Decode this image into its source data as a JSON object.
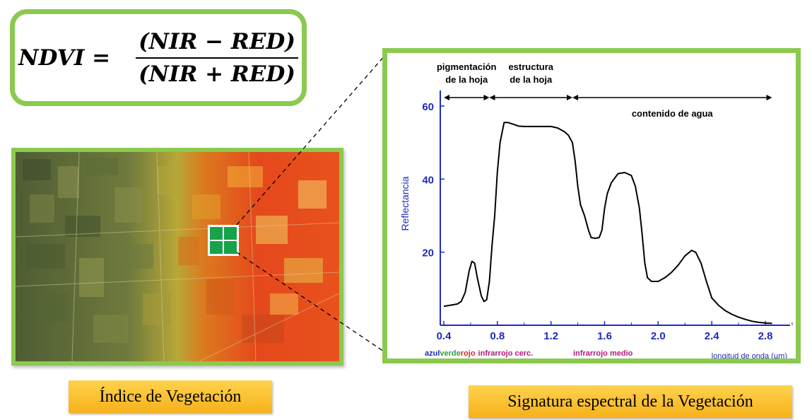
{
  "formula": {
    "lhs": "NDVI =",
    "numerator": "(NIR − RED)",
    "denominator": "(NIR + RED)"
  },
  "captions": {
    "left": "Índice de Vegetación",
    "right": "Signatura espectral de la Vegetación"
  },
  "colors": {
    "frame_green": "#8cc94f",
    "caption_gold": "#f6b21a",
    "axis_blue": "#1f2bbd",
    "band_blue": "#1f2bbd",
    "band_green": "#2ba33a",
    "band_red": "#d6262b",
    "band_magenta": "#b5197f",
    "square_green": "#16a34a"
  },
  "chart_data": {
    "type": "line",
    "ylabel": "Reflectancia",
    "xlabel": "longitud de onda (µm)",
    "x_ticks": [
      "0.4",
      "0.8",
      "1.2",
      "1.6",
      "2.0",
      "2.4",
      "2.8"
    ],
    "y_ticks": [
      "20",
      "40",
      "60"
    ],
    "xlim": [
      0.4,
      3.2
    ],
    "ylim": [
      0,
      60
    ],
    "regions": [
      {
        "label_line1": "pigmentación",
        "label_line2": "de la hoja",
        "x_start": 0.4,
        "x_end": 0.74
      },
      {
        "label_line1": "estructura",
        "label_line2": "de la hoja",
        "x_start": 0.74,
        "x_end": 1.36
      },
      {
        "label_line1": "contenido de agua",
        "label_line2": "",
        "x_start": 1.36,
        "x_end": 2.85
      }
    ],
    "bands": {
      "azul": "azul",
      "verde": "verde",
      "rojo": "rojo",
      "nir": "infrarrojo cerc.",
      "mir": "infrarrojo medio"
    },
    "series": [
      {
        "x": [
          0.4,
          0.45,
          0.5,
          0.53,
          0.56,
          0.59,
          0.61,
          0.63,
          0.65,
          0.68,
          0.7,
          0.72,
          0.74,
          0.76,
          0.78,
          0.8,
          0.82,
          0.85,
          0.88,
          0.92,
          0.96,
          1.0,
          1.05,
          1.1,
          1.15,
          1.2,
          1.25,
          1.3,
          1.33,
          1.36,
          1.38,
          1.4,
          1.42,
          1.45,
          1.48,
          1.5,
          1.53,
          1.56,
          1.58,
          1.6,
          1.62,
          1.65,
          1.7,
          1.75,
          1.8,
          1.83,
          1.86,
          1.88,
          1.9,
          1.92,
          1.95,
          2.0,
          2.05,
          2.1,
          2.15,
          2.2,
          2.25,
          2.28,
          2.32,
          2.36,
          2.4,
          2.45,
          2.5,
          2.55,
          2.6,
          2.65,
          2.7,
          2.75,
          2.8,
          2.85
        ],
        "y": [
          5.2,
          5.5,
          5.8,
          6.5,
          9.0,
          15.0,
          17.5,
          17.0,
          13.0,
          8.0,
          6.5,
          7.0,
          12.0,
          22.0,
          30.0,
          42.0,
          50.0,
          55.5,
          55.5,
          55.0,
          54.5,
          54.4,
          54.4,
          54.4,
          54.4,
          54.4,
          54.0,
          53.0,
          52.0,
          50.0,
          45.0,
          38.0,
          33.0,
          30.0,
          26.0,
          24.0,
          23.8,
          24.0,
          26.0,
          32.0,
          36.0,
          39.0,
          41.5,
          41.8,
          41.0,
          38.0,
          32.0,
          25.0,
          17.0,
          13.0,
          12.0,
          12.0,
          13.0,
          14.5,
          16.5,
          19.0,
          20.5,
          20.0,
          17.0,
          12.0,
          7.5,
          5.5,
          4.0,
          3.0,
          2.2,
          1.6,
          1.1,
          0.8,
          0.6,
          0.5
        ]
      }
    ]
  }
}
